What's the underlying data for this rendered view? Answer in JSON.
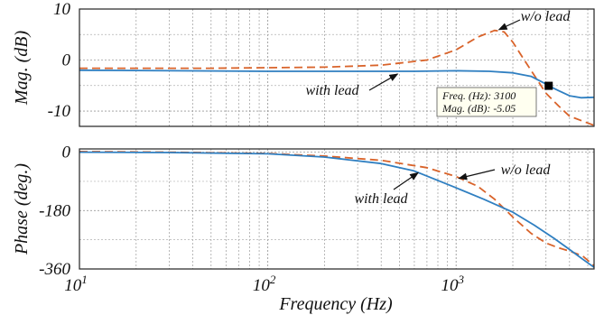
{
  "chart_data": [
    {
      "type": "line",
      "panel": "magnitude",
      "ylabel": "Mag. (dB)",
      "xscale": "log",
      "xlim": [
        10,
        5400
      ],
      "ylim": [
        -13,
        10
      ],
      "y_ticks": [
        10,
        0,
        -10
      ],
      "y_tick_labels": [
        "10",
        "0",
        "-10"
      ],
      "grid": true,
      "series": [
        {
          "name": "w/o lead",
          "style": "dashed",
          "color": "#d9632a",
          "x": [
            10,
            50,
            200,
            400,
            700,
            1000,
            1300,
            1600,
            1800,
            2000,
            2300,
            2600,
            3000,
            3500,
            4000,
            5400
          ],
          "y": [
            -1.6,
            -1.6,
            -1.4,
            -1.0,
            0.0,
            2.0,
            4.5,
            5.8,
            5.5,
            3.5,
            0.0,
            -3.0,
            -6.5,
            -9.0,
            -11.0,
            -12.8
          ]
        },
        {
          "name": "with lead",
          "style": "solid",
          "color": "#2f7fc1",
          "x": [
            10,
            100,
            300,
            600,
            1000,
            1500,
            2000,
            2500,
            3000,
            3100,
            3500,
            4000,
            4600,
            5400
          ],
          "y": [
            -2.0,
            -2.2,
            -2.2,
            -2.2,
            -2.1,
            -2.2,
            -2.5,
            -3.2,
            -4.7,
            -5.05,
            -6.0,
            -7.0,
            -7.4,
            -7.3
          ]
        }
      ],
      "annotations": [
        {
          "text": "w/o lead",
          "target": [
            1650,
            5.6
          ]
        },
        {
          "text": "with lead",
          "target": [
            500,
            -2.2
          ]
        }
      ],
      "datatip": {
        "x": 3100,
        "y": -5.05,
        "line1": "Freq. (Hz): 3100",
        "line2": "Mag. (dB): -5.05"
      }
    },
    {
      "type": "line",
      "panel": "phase",
      "ylabel": "Phase (deg.)",
      "xlabel": "Frequency  (Hz)",
      "xscale": "log",
      "xlim": [
        10,
        5400
      ],
      "ylim": [
        -360,
        10
      ],
      "y_ticks": [
        0,
        -180,
        -360
      ],
      "y_tick_labels": [
        "0",
        "-180",
        "-360"
      ],
      "x_ticks": [
        10,
        100,
        1000
      ],
      "x_tick_labels": [
        {
          "base": "10",
          "exp": "1"
        },
        {
          "base": "10",
          "exp": "2"
        },
        {
          "base": "10",
          "exp": "3"
        }
      ],
      "grid": true,
      "series": [
        {
          "name": "w/o lead",
          "style": "dashed",
          "color": "#d9632a",
          "x": [
            10,
            30,
            100,
            200,
            400,
            700,
            1000,
            1300,
            1600,
            2000,
            2500,
            3000,
            3500,
            4000,
            4700,
            5400
          ],
          "y": [
            2,
            0,
            -4,
            -12,
            -25,
            -48,
            -75,
            -105,
            -145,
            -200,
            -250,
            -280,
            -295,
            -305,
            -320,
            -350
          ]
        },
        {
          "name": "with lead",
          "style": "solid",
          "color": "#2f7fc1",
          "x": [
            10,
            30,
            100,
            200,
            400,
            600,
            1000,
            1400,
            2000,
            2600,
            3300,
            4000,
            4700,
            5400
          ],
          "y": [
            0,
            -1,
            -5,
            -15,
            -35,
            -58,
            -110,
            -145,
            -185,
            -225,
            -265,
            -300,
            -330,
            -355
          ]
        }
      ],
      "annotations": [
        {
          "text": "w/o lead",
          "target": [
            1000,
            -78
          ]
        },
        {
          "text": "with lead",
          "target": [
            650,
            -55
          ]
        }
      ]
    }
  ]
}
